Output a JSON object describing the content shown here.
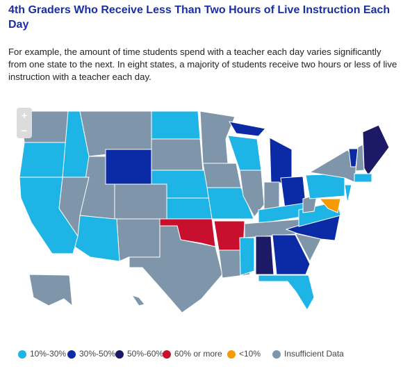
{
  "title": "4th Graders Who Receive Less Than Two Hours of Live Instruction Each Day",
  "description": "For example, the amount of time students spend with a teacher each day varies significantly from one state to the next. In eight states, a majority of students receive two hours or less of live instruction with a teacher each day.",
  "zoom": [
    "+",
    "−"
  ],
  "legend": [
    {
      "label": "10%-30%",
      "color": "#1eb4e6"
    },
    {
      "label": "30%-50%",
      "color": "#0a2aa6"
    },
    {
      "label": "50%-60%",
      "color": "#1c1a66"
    },
    {
      "label": "60% or more",
      "color": "#c8102e"
    },
    {
      "label": "<10%",
      "color": "#f59a00"
    },
    {
      "label": "Insufficient Data",
      "color": "#7f96aa"
    }
  ]
}
